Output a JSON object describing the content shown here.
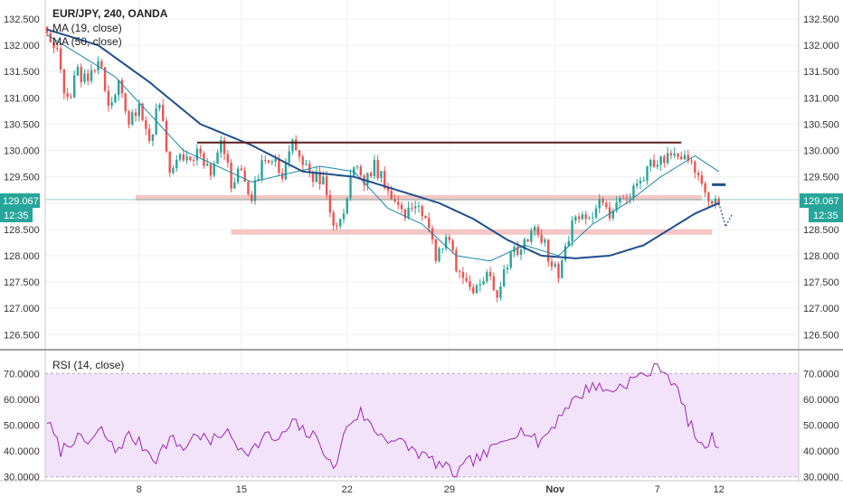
{
  "header": {
    "title": "EUR/JPY, 240, OANDA"
  },
  "colors": {
    "up": "#26a69a",
    "down": "#ef5350",
    "ma_fast": "#1e88a8",
    "ma_slow": "#1f4e8c",
    "rsi_line": "#9c27b0",
    "rsi_fill": "#f2e3fb",
    "resistance": "#5a1e1e",
    "zone": "#f4c6c6",
    "price_line": "#26a69a",
    "price_tag": "#26a69a",
    "projection": "#1f4e8c"
  },
  "chart_data": [
    {
      "type": "candlestick",
      "title": "EUR/JPY, 240, OANDA",
      "legend": [
        {
          "name": "MA (19, close)"
        },
        {
          "name": "MA (50, close)"
        }
      ],
      "y_ticks": [
        "132.500",
        "132.000",
        "131.500",
        "131.000",
        "130.500",
        "130.000",
        "129.500",
        "129.000",
        "128.500",
        "128.000",
        "127.500",
        "127.000",
        "126.500"
      ],
      "y_tick_values": [
        132.5,
        132.0,
        131.5,
        131.0,
        130.5,
        130.0,
        129.5,
        129.0,
        128.5,
        128.0,
        127.5,
        127.0,
        126.5
      ],
      "ylim": [
        126.35,
        132.62
      ],
      "x_ticks": [
        {
          "label": "8",
          "bar": 27
        },
        {
          "label": "15",
          "bar": 57
        },
        {
          "label": "22",
          "bar": 88
        },
        {
          "label": "29",
          "bar": 118
        },
        {
          "label": "Nov",
          "bar": 149
        },
        {
          "label": "7",
          "bar": 179
        },
        {
          "label": "12",
          "bar": 197
        }
      ],
      "bar_count": 197,
      "anchors": [
        [
          0,
          132.3
        ],
        [
          3,
          131.8
        ],
        [
          6,
          130.9
        ],
        [
          9,
          131.5
        ],
        [
          12,
          131.3
        ],
        [
          15,
          131.8
        ],
        [
          18,
          130.9
        ],
        [
          21,
          131.2
        ],
        [
          24,
          130.6
        ],
        [
          27,
          130.8
        ],
        [
          30,
          130.2
        ],
        [
          33,
          130.9
        ],
        [
          36,
          129.6
        ],
        [
          39,
          129.9
        ],
        [
          42,
          129.7
        ],
        [
          45,
          130.0
        ],
        [
          48,
          129.5
        ],
        [
          51,
          130.1
        ],
        [
          54,
          129.4
        ],
        [
          57,
          129.6
        ],
        [
          60,
          129.1
        ],
        [
          63,
          129.7
        ],
        [
          66,
          129.9
        ],
        [
          69,
          129.5
        ],
        [
          72,
          130.1
        ],
        [
          75,
          129.8
        ],
        [
          78,
          129.5
        ],
        [
          81,
          129.4
        ],
        [
          84,
          128.5
        ],
        [
          87,
          128.9
        ],
        [
          90,
          129.7
        ],
        [
          93,
          129.4
        ],
        [
          96,
          129.7
        ],
        [
          99,
          129.4
        ],
        [
          102,
          129.1
        ],
        [
          105,
          128.8
        ],
        [
          108,
          129.0
        ],
        [
          111,
          128.7
        ],
        [
          114,
          128.0
        ],
        [
          117,
          128.4
        ],
        [
          120,
          127.8
        ],
        [
          123,
          127.5
        ],
        [
          126,
          127.3
        ],
        [
          129,
          127.6
        ],
        [
          132,
          127.3
        ],
        [
          135,
          127.9
        ],
        [
          138,
          128.1
        ],
        [
          141,
          128.3
        ],
        [
          144,
          128.5
        ],
        [
          147,
          128.0
        ],
        [
          150,
          127.7
        ],
        [
          153,
          128.4
        ],
        [
          156,
          128.8
        ],
        [
          159,
          128.6
        ],
        [
          162,
          129.0
        ],
        [
          165,
          128.8
        ],
        [
          168,
          129.1
        ],
        [
          171,
          129.2
        ],
        [
          174,
          129.5
        ],
        [
          177,
          129.7
        ],
        [
          180,
          129.9
        ],
        [
          183,
          129.8
        ],
        [
          186,
          129.9
        ],
        [
          189,
          129.7
        ],
        [
          192,
          129.3
        ],
        [
          194,
          129.1
        ],
        [
          197,
          129.07
        ]
      ],
      "ma_fast_anchors": [
        [
          0,
          132.2
        ],
        [
          20,
          131.4
        ],
        [
          40,
          130.0
        ],
        [
          60,
          129.4
        ],
        [
          80,
          129.7
        ],
        [
          90,
          129.6
        ],
        [
          100,
          128.9
        ],
        [
          110,
          128.6
        ],
        [
          120,
          128.0
        ],
        [
          130,
          127.9
        ],
        [
          140,
          128.2
        ],
        [
          150,
          128.0
        ],
        [
          160,
          128.6
        ],
        [
          170,
          129.0
        ],
        [
          180,
          129.5
        ],
        [
          190,
          129.9
        ],
        [
          197,
          129.6
        ]
      ],
      "ma_slow_anchors": [
        [
          0,
          132.3
        ],
        [
          15,
          132.0
        ],
        [
          30,
          131.3
        ],
        [
          45,
          130.5
        ],
        [
          60,
          130.1
        ],
        [
          75,
          129.6
        ],
        [
          90,
          129.5
        ],
        [
          105,
          129.2
        ],
        [
          115,
          129.0
        ],
        [
          125,
          128.7
        ],
        [
          135,
          128.3
        ],
        [
          145,
          128.0
        ],
        [
          155,
          127.95
        ],
        [
          165,
          128.0
        ],
        [
          175,
          128.2
        ],
        [
          185,
          128.6
        ],
        [
          190,
          128.8
        ],
        [
          197,
          129.0
        ]
      ],
      "resistance": {
        "value": 130.15,
        "from_bar": 44,
        "to_bar": 186
      },
      "zones": [
        {
          "value": 129.1,
          "from_bar": 26,
          "to_bar": 192
        },
        {
          "value": 128.45,
          "from_bar": 54,
          "to_bar": 195
        }
      ],
      "current_price": {
        "value": 129.067,
        "label": "129.067",
        "time_label": "12:35"
      },
      "projection": [
        {
          "bar": 197,
          "value": 129.0
        },
        {
          "bar": 199,
          "value": 128.55
        },
        {
          "bar": 201,
          "value": 128.8
        }
      ],
      "projection_level": 129.35
    },
    {
      "type": "line",
      "legend": [
        {
          "name": "RSI (14, close)"
        }
      ],
      "y_ticks": [
        "70.0000",
        "60.0000",
        "50.0000",
        "40.0000",
        "30.0000"
      ],
      "y_tick_values": [
        70,
        60,
        50,
        40,
        30
      ],
      "ylim": [
        28.5,
        75
      ],
      "band": [
        30,
        70
      ],
      "rsi_anchors": [
        [
          0,
          52
        ],
        [
          4,
          40
        ],
        [
          8,
          45
        ],
        [
          12,
          43
        ],
        [
          16,
          48
        ],
        [
          20,
          40
        ],
        [
          24,
          46
        ],
        [
          28,
          42
        ],
        [
          32,
          37
        ],
        [
          36,
          45
        ],
        [
          40,
          41
        ],
        [
          44,
          47
        ],
        [
          48,
          43
        ],
        [
          52,
          48
        ],
        [
          56,
          42
        ],
        [
          60,
          40
        ],
        [
          64,
          46
        ],
        [
          68,
          44
        ],
        [
          72,
          51
        ],
        [
          76,
          47
        ],
        [
          80,
          44
        ],
        [
          84,
          32
        ],
        [
          88,
          50
        ],
        [
          92,
          55
        ],
        [
          96,
          48
        ],
        [
          100,
          45
        ],
        [
          104,
          43
        ],
        [
          108,
          40
        ],
        [
          112,
          37
        ],
        [
          116,
          34
        ],
        [
          120,
          31
        ],
        [
          124,
          36
        ],
        [
          128,
          38
        ],
        [
          132,
          42
        ],
        [
          136,
          47
        ],
        [
          140,
          48
        ],
        [
          144,
          43
        ],
        [
          148,
          49
        ],
        [
          152,
          57
        ],
        [
          156,
          61
        ],
        [
          160,
          66
        ],
        [
          164,
          63
        ],
        [
          168,
          65
        ],
        [
          172,
          68
        ],
        [
          176,
          70
        ],
        [
          180,
          73
        ],
        [
          184,
          66
        ],
        [
          188,
          52
        ],
        [
          192,
          41
        ],
        [
          195,
          45
        ],
        [
          197,
          42
        ]
      ]
    }
  ]
}
